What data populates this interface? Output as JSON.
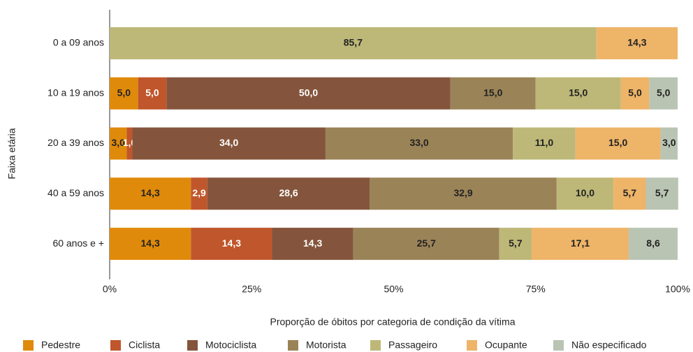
{
  "chart_data": {
    "type": "stacked_barh",
    "x_label": "Proporção de óbitos por categoria de condição da vítima",
    "y_label": "Faixa etária",
    "categories": [
      "0 a 09 anos",
      "10 a 19 anos",
      "20 a 39 anos",
      "40 a 59 anos",
      "60 anos e +"
    ],
    "xlim": [
      0,
      100
    ],
    "xticks": [
      {
        "value": 0,
        "label": "0%"
      },
      {
        "value": 25,
        "label": "25%"
      },
      {
        "value": 50,
        "label": "50%"
      },
      {
        "value": 75,
        "label": "75%"
      },
      {
        "value": 100,
        "label": "100%"
      }
    ],
    "grid": false,
    "legend": "bottom",
    "series": [
      {
        "name": "Pedestre",
        "color": "#e08a0b",
        "label_color": "#222",
        "values": [
          null,
          5.0,
          3.0,
          14.3,
          14.3
        ],
        "value_labels": [
          null,
          "5,0",
          "3,0",
          "14,3",
          "14,3"
        ]
      },
      {
        "name": "Ciclista",
        "color": "#c0562b",
        "label_color": "#fff",
        "values": [
          null,
          5.0,
          1.0,
          2.9,
          14.3
        ],
        "value_labels": [
          null,
          "5,0",
          "1,0",
          "2,9",
          "14,3"
        ]
      },
      {
        "name": "Motociclista",
        "color": "#84553c",
        "label_color": "#fff",
        "values": [
          null,
          50.0,
          34.0,
          28.6,
          14.3
        ],
        "value_labels": [
          null,
          "50,0",
          "34,0",
          "28,6",
          "14,3"
        ]
      },
      {
        "name": "Motorista",
        "color": "#9b8358",
        "label_color": "#222",
        "values": [
          null,
          15.0,
          33.0,
          32.9,
          25.7
        ],
        "value_labels": [
          null,
          "15,0",
          "33,0",
          "32,9",
          "25,7"
        ]
      },
      {
        "name": "Passageiro",
        "color": "#bdb878",
        "label_color": "#222",
        "values": [
          85.7,
          15.0,
          11.0,
          10.0,
          5.7
        ],
        "value_labels": [
          "85,7",
          "15,0",
          "11,0",
          "10,0",
          "5,7"
        ]
      },
      {
        "name": "Ocupante",
        "color": "#eeb468",
        "label_color": "#222",
        "values": [
          14.3,
          5.0,
          15.0,
          5.7,
          17.1
        ],
        "value_labels": [
          "14,3",
          "5,0",
          "15,0",
          "5,7",
          "17,1"
        ]
      },
      {
        "name": "Não especificado",
        "color": "#b9c4b3",
        "label_color": "#222",
        "values": [
          null,
          5.0,
          3.0,
          5.7,
          8.6
        ],
        "value_labels": [
          null,
          "5,0",
          "3,0",
          "5,7",
          "8,6"
        ]
      }
    ]
  }
}
